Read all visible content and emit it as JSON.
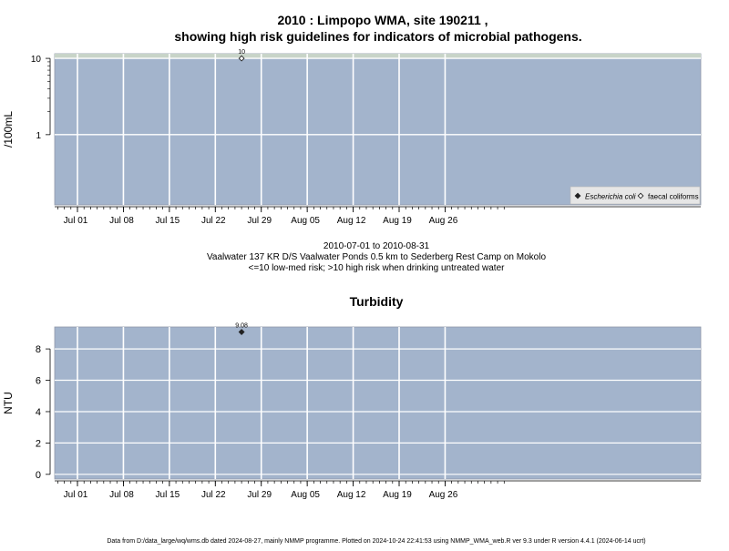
{
  "title_line1": "2010 : Limpopo WMA, site 190211 ,",
  "title_line2": "showing high risk guidelines for indicators of microbial pathogens.",
  "caption_line1": "2010-07-01 to 2010-08-31",
  "caption_line2": "Vaalwater 137 KR D/S Vaalwater Ponds 0.5 km to Sederberg Rest Camp on Mokolo",
  "caption_line3": "<=10 low-med risk; >10 high risk when drinking untreated water",
  "footer": "Data from D:/data_large/wq/wms.db dated 2024-08-27, mainly NMMP programme. Plotted on 2024-10-24 22:41:53 using NMMP_WMA_web.R ver 9.3 under R version 4.4.1 (2024-06-14 ucrt)",
  "colors": {
    "panel_bg": "#a3b4cc",
    "high_risk_band": "#c8d4c8",
    "grid": "#ffffff",
    "point": "#222222"
  },
  "chart_data": [
    {
      "type": "scatter",
      "title": "",
      "ylabel": "/100mL",
      "y_scale": "log",
      "ylim": [
        0.12,
        11.5
      ],
      "high_risk_threshold": 10,
      "x_ticks": [
        "Jul 01",
        "Jul 08",
        "Jul 15",
        "Jul 22",
        "Jul 29",
        "Aug 05",
        "Aug 12",
        "Aug 19",
        "Aug 26"
      ],
      "y_ticks": [
        "1",
        "10"
      ],
      "legend": {
        "placement": "bottom-right",
        "entries": [
          {
            "label": "Escherichia coli",
            "marker": "filled-diamond"
          },
          {
            "label": "faecal coliforms",
            "marker": "open-diamond"
          }
        ]
      },
      "series": [
        {
          "name": "faecal coliforms",
          "marker": "open-diamond",
          "points": [
            {
              "x": "2010-07-26",
              "y": 10,
              "label": "10"
            }
          ]
        }
      ],
      "grid": true
    },
    {
      "type": "scatter",
      "title": "Turbidity",
      "ylabel": "NTU",
      "y_scale": "linear",
      "ylim": [
        -0.3,
        9.4
      ],
      "x_ticks": [
        "Jul 01",
        "Jul 08",
        "Jul 15",
        "Jul 22",
        "Jul 29",
        "Aug 05",
        "Aug 12",
        "Aug 19",
        "Aug 26"
      ],
      "y_ticks": [
        "0",
        "2",
        "4",
        "6",
        "8"
      ],
      "series": [
        {
          "marker": "filled-diamond",
          "points": [
            {
              "x": "2010-07-26",
              "y": 9.08,
              "label": "9.08"
            }
          ]
        }
      ],
      "grid": true
    }
  ]
}
